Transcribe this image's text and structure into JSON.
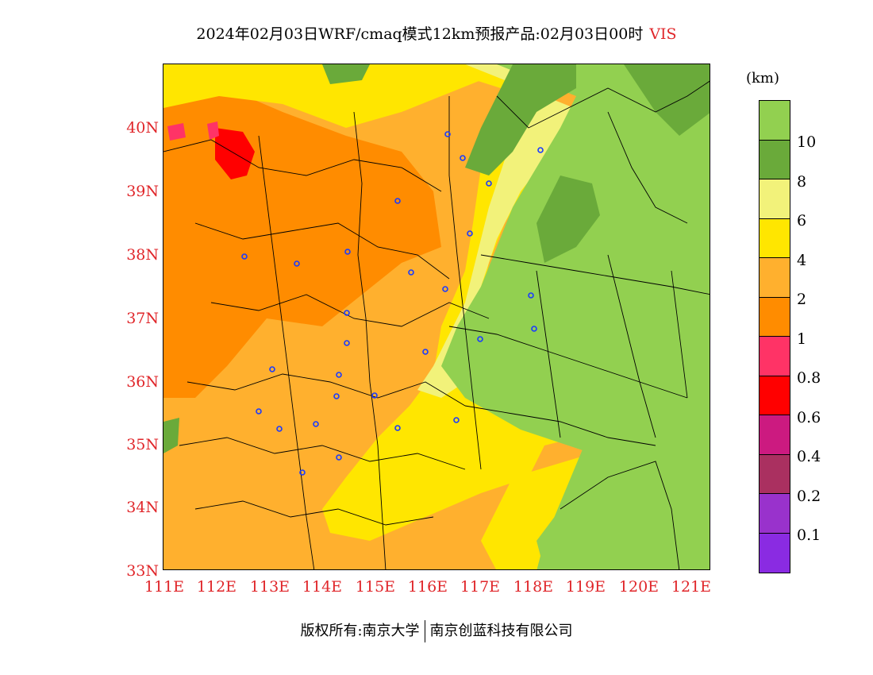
{
  "title": {
    "main": "2024年02月03日WRF/cmaq模式12km预报产品:02月03日00时",
    "variable": "VIS"
  },
  "axes": {
    "y_labels": [
      "40N",
      "39N",
      "38N",
      "37N",
      "36N",
      "35N",
      "34N",
      "33N"
    ],
    "x_labels": [
      "111E",
      "112E",
      "113E",
      "114E",
      "115E",
      "116E",
      "117E",
      "118E",
      "119E",
      "120E",
      "121E"
    ]
  },
  "legend": {
    "unit": "(km)",
    "labels": [
      "10",
      "8",
      "6",
      "4",
      "2",
      "1",
      "0.8",
      "0.6",
      "0.4",
      "0.2",
      "0.1"
    ],
    "colors": [
      "#92d050",
      "#6aaa3a",
      "#f2f27a",
      "#ffe600",
      "#ffb02e",
      "#ff8c00",
      "#ff3366",
      "#ff0000",
      "#cc1a80",
      "#aa3060",
      "#9932cc",
      "#8a2be2"
    ]
  },
  "stations": "blue-circle-markers",
  "footer": {
    "copyright": "版权所有:南京大学",
    "company": "南京创蓝科技有限公司"
  }
}
